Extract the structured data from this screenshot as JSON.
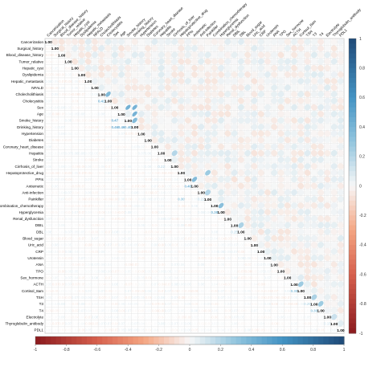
{
  "chart_data": {
    "type": "heatmap",
    "variables": [
      "Cancerization",
      "Surgical_history",
      "Blood_disease_history",
      "Tumor_relative",
      "Hepatic_cyst",
      "Dyslipidemia",
      "Hepatic_metastasis",
      "NFALD",
      "Cholecholithiasis",
      "Cholecystitis",
      "Sex",
      "Age",
      "Smoke_history",
      "Drinking_history",
      "Hypertension",
      "Diabetes",
      "Coronary_heart_disease",
      "Hepatitis",
      "Stroke",
      "Cirrhosis_of_liver",
      "Hepatoprotective_drug",
      "PPIs",
      "Antiemetic",
      "Anti-infection",
      "Painkiller",
      "Combination_chemotherapy",
      "Hyperglycemia",
      "Renal_dysfunction",
      "DBIL",
      "DBL",
      "Blood_sugar",
      "Uric_acid",
      "CRP",
      "Urotensin",
      "ANA",
      "TPO",
      "Sex_hormone",
      "ACTH",
      "Cortisol_8am",
      "TSH",
      "T3",
      "T4",
      "Electrolyte",
      "Thyroglobulin_antibody",
      "PDL1"
    ],
    "diagonal_value": 1.0,
    "legend": {
      "min": -1,
      "max": 1,
      "ticks": [
        -1,
        -0.8,
        -0.6,
        -0.4,
        -0.2,
        0,
        0.2,
        0.4,
        0.6,
        0.8,
        1
      ]
    },
    "highlighted_correlations": [
      {
        "a": "Sex",
        "b": "Smoke_history",
        "r": 0.47
      },
      {
        "a": "Sex",
        "b": "Drinking_history",
        "r": 0.46
      },
      {
        "a": "Age",
        "b": "Drinking_history",
        "r": 0.46
      },
      {
        "a": "Smoke_history",
        "b": "Drinking_history",
        "r": 0.4
      },
      {
        "a": "Cholecholithiasis",
        "b": "Cholecystitis",
        "r": 0.41
      },
      {
        "a": "PPIs",
        "b": "Antiemetic",
        "r": 0.4
      },
      {
        "a": "Combination_chemotherapy",
        "b": "Hyperglycemia",
        "r": 0.38
      },
      {
        "a": "Hepatoprotective_drug",
        "b": "Painkiller",
        "r": 0.3
      },
      {
        "a": "ACTH",
        "b": "Cortisol_8am",
        "r": 0.3
      },
      {
        "a": "T3",
        "b": "T4",
        "r": 0.3
      },
      {
        "a": "TSH",
        "b": "T3",
        "r": 0.25
      },
      {
        "a": "Hepatitis",
        "b": "Cirrhosis_of_liver",
        "r": 0.22
      },
      {
        "a": "Anti-infection",
        "b": "Painkiller",
        "r": 0.22
      },
      {
        "a": "DBIL",
        "b": "DBL",
        "r": 0.25
      },
      {
        "a": "Electrolyte",
        "b": "Thyroglobulin_antibody",
        "r": 0.15
      }
    ],
    "cell_style": "lower triangle shows coefficient text, upper triangle shows ellipses",
    "colors": {
      "negative": "#8b1a1e",
      "neutral": "#f7f7f7",
      "positive": "#1f4a78"
    }
  }
}
